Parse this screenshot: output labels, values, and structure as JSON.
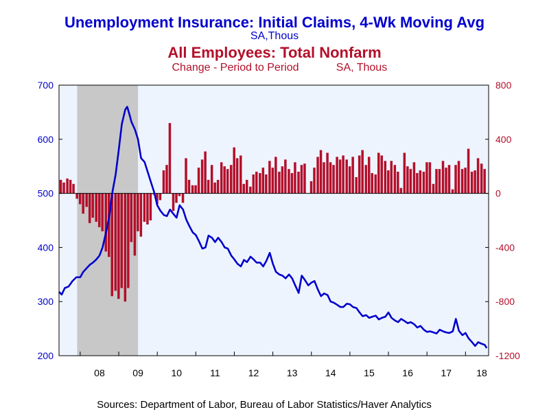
{
  "chart_data": {
    "type": "bar+line",
    "title": "Unemployment Insurance: Initial Claims, 4-Wk Moving Avg",
    "title_units": "SA,Thous",
    "subtitle": "All Employees: Total Nonfarm",
    "subtitle_units_a": "Change - Period to Period",
    "subtitle_units_b": "SA, Thous",
    "source": "Sources:  Department of Labor, Bureau of Labor Statistics/Haver Analytics",
    "colors": {
      "line": "#0000cc",
      "bars": "#b30f2a",
      "plot_bg": "#eef4fe",
      "recession": "#c8c8c8",
      "left_axis": "#0000cc",
      "right_axis": "#b30f2a"
    },
    "x_axis": {
      "ticks": [
        "08",
        "09",
        "10",
        "11",
        "12",
        "13",
        "14",
        "15",
        "16",
        "17",
        "18"
      ],
      "range": [
        2007.45,
        2018.6
      ]
    },
    "left_axis": {
      "range": [
        200,
        700
      ],
      "ticks": [
        "200",
        "300",
        "400",
        "500",
        "600",
        "700"
      ]
    },
    "right_axis": {
      "range": [
        -1200,
        800
      ],
      "ticks": [
        "-1200",
        "-800",
        "-400",
        "0",
        "400",
        "800"
      ]
    },
    "recession": [
      2007.92,
      2009.5
    ],
    "series": [
      {
        "name": "Unemployment Insurance: Initial Claims, 4-Wk Moving Avg",
        "axis": "left",
        "points": [
          [
            2007.45,
            318
          ],
          [
            2007.52,
            313
          ],
          [
            2007.6,
            325
          ],
          [
            2007.7,
            328
          ],
          [
            2007.8,
            338
          ],
          [
            2007.9,
            345
          ],
          [
            2008.0,
            345
          ],
          [
            2008.08,
            355
          ],
          [
            2008.17,
            362
          ],
          [
            2008.25,
            368
          ],
          [
            2008.33,
            372
          ],
          [
            2008.42,
            378
          ],
          [
            2008.5,
            385
          ],
          [
            2008.58,
            400
          ],
          [
            2008.67,
            428
          ],
          [
            2008.75,
            455
          ],
          [
            2008.83,
            500
          ],
          [
            2008.92,
            535
          ],
          [
            2009.0,
            580
          ],
          [
            2009.08,
            628
          ],
          [
            2009.17,
            655
          ],
          [
            2009.22,
            660
          ],
          [
            2009.27,
            648
          ],
          [
            2009.33,
            632
          ],
          [
            2009.42,
            618
          ],
          [
            2009.5,
            600
          ],
          [
            2009.58,
            565
          ],
          [
            2009.67,
            558
          ],
          [
            2009.75,
            540
          ],
          [
            2009.83,
            522
          ],
          [
            2009.92,
            502
          ],
          [
            2010.0,
            478
          ],
          [
            2010.08,
            468
          ],
          [
            2010.17,
            460
          ],
          [
            2010.25,
            458
          ],
          [
            2010.33,
            470
          ],
          [
            2010.42,
            462
          ],
          [
            2010.5,
            455
          ],
          [
            2010.58,
            478
          ],
          [
            2010.67,
            470
          ],
          [
            2010.75,
            452
          ],
          [
            2010.83,
            440
          ],
          [
            2010.92,
            428
          ],
          [
            2011.0,
            423
          ],
          [
            2011.08,
            412
          ],
          [
            2011.17,
            398
          ],
          [
            2011.25,
            400
          ],
          [
            2011.33,
            422
          ],
          [
            2011.42,
            418
          ],
          [
            2011.5,
            410
          ],
          [
            2011.58,
            418
          ],
          [
            2011.67,
            410
          ],
          [
            2011.75,
            400
          ],
          [
            2011.83,
            398
          ],
          [
            2011.92,
            385
          ],
          [
            2012.0,
            378
          ],
          [
            2012.08,
            370
          ],
          [
            2012.17,
            365
          ],
          [
            2012.25,
            377
          ],
          [
            2012.33,
            373
          ],
          [
            2012.42,
            383
          ],
          [
            2012.5,
            378
          ],
          [
            2012.58,
            372
          ],
          [
            2012.67,
            372
          ],
          [
            2012.75,
            365
          ],
          [
            2012.83,
            375
          ],
          [
            2012.92,
            390
          ],
          [
            2013.0,
            370
          ],
          [
            2013.08,
            355
          ],
          [
            2013.17,
            350
          ],
          [
            2013.25,
            348
          ],
          [
            2013.33,
            343
          ],
          [
            2013.42,
            350
          ],
          [
            2013.5,
            343
          ],
          [
            2013.58,
            330
          ],
          [
            2013.67,
            316
          ],
          [
            2013.75,
            348
          ],
          [
            2013.83,
            340
          ],
          [
            2013.92,
            330
          ],
          [
            2014.0,
            335
          ],
          [
            2014.08,
            338
          ],
          [
            2014.17,
            322
          ],
          [
            2014.25,
            310
          ],
          [
            2014.33,
            315
          ],
          [
            2014.42,
            312
          ],
          [
            2014.5,
            300
          ],
          [
            2014.58,
            298
          ],
          [
            2014.67,
            294
          ],
          [
            2014.75,
            290
          ],
          [
            2014.83,
            290
          ],
          [
            2014.92,
            296
          ],
          [
            2015.0,
            295
          ],
          [
            2015.08,
            290
          ],
          [
            2015.17,
            288
          ],
          [
            2015.25,
            280
          ],
          [
            2015.33,
            273
          ],
          [
            2015.42,
            275
          ],
          [
            2015.5,
            270
          ],
          [
            2015.58,
            272
          ],
          [
            2015.67,
            274
          ],
          [
            2015.75,
            267
          ],
          [
            2015.83,
            270
          ],
          [
            2015.92,
            272
          ],
          [
            2016.0,
            280
          ],
          [
            2016.08,
            270
          ],
          [
            2016.17,
            265
          ],
          [
            2016.25,
            262
          ],
          [
            2016.33,
            268
          ],
          [
            2016.42,
            264
          ],
          [
            2016.5,
            260
          ],
          [
            2016.58,
            262
          ],
          [
            2016.67,
            258
          ],
          [
            2016.75,
            252
          ],
          [
            2016.83,
            255
          ],
          [
            2016.92,
            248
          ],
          [
            2017.0,
            244
          ],
          [
            2017.08,
            245
          ],
          [
            2017.17,
            243
          ],
          [
            2017.25,
            241
          ],
          [
            2017.33,
            248
          ],
          [
            2017.42,
            245
          ],
          [
            2017.5,
            243
          ],
          [
            2017.58,
            242
          ],
          [
            2017.67,
            245
          ],
          [
            2017.75,
            268
          ],
          [
            2017.83,
            246
          ],
          [
            2017.92,
            238
          ],
          [
            2018.0,
            242
          ],
          [
            2018.08,
            232
          ],
          [
            2018.17,
            225
          ],
          [
            2018.25,
            218
          ],
          [
            2018.33,
            225
          ],
          [
            2018.42,
            222
          ],
          [
            2018.5,
            220
          ],
          [
            2018.55,
            214
          ]
        ]
      },
      {
        "name": "All Employees: Total Nonfarm",
        "axis": "right",
        "bar_width": 0.071,
        "points": [
          [
            2007.5,
            100
          ],
          [
            2007.58,
            80
          ],
          [
            2007.67,
            110
          ],
          [
            2007.75,
            100
          ],
          [
            2007.83,
            70
          ],
          [
            2007.92,
            -40
          ],
          [
            2008.0,
            -80
          ],
          [
            2008.08,
            -150
          ],
          [
            2008.17,
            -100
          ],
          [
            2008.25,
            -220
          ],
          [
            2008.33,
            -180
          ],
          [
            2008.42,
            -210
          ],
          [
            2008.5,
            -250
          ],
          [
            2008.58,
            -280
          ],
          [
            2008.67,
            -430
          ],
          [
            2008.75,
            -470
          ],
          [
            2008.83,
            -760
          ],
          [
            2008.92,
            -720
          ],
          [
            2009.0,
            -780
          ],
          [
            2009.08,
            -700
          ],
          [
            2009.17,
            -800
          ],
          [
            2009.25,
            -700
          ],
          [
            2009.33,
            -360
          ],
          [
            2009.42,
            -460
          ],
          [
            2009.5,
            -280
          ],
          [
            2009.58,
            -320
          ],
          [
            2009.67,
            -210
          ],
          [
            2009.75,
            -230
          ],
          [
            2009.83,
            -200
          ],
          [
            2009.92,
            -10
          ],
          [
            2010.0,
            -80
          ],
          [
            2010.08,
            -50
          ],
          [
            2010.17,
            170
          ],
          [
            2010.25,
            210
          ],
          [
            2010.33,
            520
          ],
          [
            2010.42,
            -130
          ],
          [
            2010.5,
            -70
          ],
          [
            2010.58,
            -20
          ],
          [
            2010.67,
            -70
          ],
          [
            2010.75,
            260
          ],
          [
            2010.83,
            100
          ],
          [
            2010.92,
            60
          ],
          [
            2011.0,
            60
          ],
          [
            2011.08,
            190
          ],
          [
            2011.17,
            250
          ],
          [
            2011.25,
            310
          ],
          [
            2011.33,
            100
          ],
          [
            2011.42,
            210
          ],
          [
            2011.5,
            80
          ],
          [
            2011.58,
            100
          ],
          [
            2011.67,
            230
          ],
          [
            2011.75,
            200
          ],
          [
            2011.83,
            180
          ],
          [
            2011.92,
            210
          ],
          [
            2012.0,
            340
          ],
          [
            2012.08,
            260
          ],
          [
            2012.17,
            280
          ],
          [
            2012.25,
            70
          ],
          [
            2012.33,
            100
          ],
          [
            2012.42,
            50
          ],
          [
            2012.5,
            140
          ],
          [
            2012.58,
            160
          ],
          [
            2012.67,
            150
          ],
          [
            2012.75,
            190
          ],
          [
            2012.83,
            140
          ],
          [
            2012.92,
            240
          ],
          [
            2013.0,
            190
          ],
          [
            2013.08,
            270
          ],
          [
            2013.17,
            160
          ],
          [
            2013.25,
            200
          ],
          [
            2013.33,
            250
          ],
          [
            2013.42,
            180
          ],
          [
            2013.5,
            150
          ],
          [
            2013.58,
            230
          ],
          [
            2013.67,
            160
          ],
          [
            2013.75,
            210
          ],
          [
            2013.83,
            220
          ],
          [
            2014.0,
            90
          ],
          [
            2014.08,
            190
          ],
          [
            2014.17,
            270
          ],
          [
            2014.25,
            320
          ],
          [
            2014.33,
            230
          ],
          [
            2014.42,
            300
          ],
          [
            2014.5,
            230
          ],
          [
            2014.58,
            210
          ],
          [
            2014.67,
            270
          ],
          [
            2014.75,
            250
          ],
          [
            2014.83,
            280
          ],
          [
            2014.92,
            250
          ],
          [
            2015.0,
            200
          ],
          [
            2015.08,
            270
          ],
          [
            2015.17,
            120
          ],
          [
            2015.25,
            280
          ],
          [
            2015.33,
            320
          ],
          [
            2015.42,
            210
          ],
          [
            2015.5,
            270
          ],
          [
            2015.58,
            150
          ],
          [
            2015.67,
            140
          ],
          [
            2015.75,
            300
          ],
          [
            2015.83,
            280
          ],
          [
            2015.92,
            240
          ],
          [
            2016.0,
            170
          ],
          [
            2016.08,
            240
          ],
          [
            2016.17,
            210
          ],
          [
            2016.25,
            160
          ],
          [
            2016.33,
            40
          ],
          [
            2016.42,
            300
          ],
          [
            2016.5,
            200
          ],
          [
            2016.58,
            180
          ],
          [
            2016.67,
            230
          ],
          [
            2016.75,
            150
          ],
          [
            2016.83,
            170
          ],
          [
            2016.92,
            160
          ],
          [
            2017.0,
            230
          ],
          [
            2017.08,
            230
          ],
          [
            2017.17,
            70
          ],
          [
            2017.25,
            180
          ],
          [
            2017.33,
            180
          ],
          [
            2017.42,
            240
          ],
          [
            2017.5,
            190
          ],
          [
            2017.58,
            210
          ],
          [
            2017.67,
            30
          ],
          [
            2017.75,
            210
          ],
          [
            2017.83,
            240
          ],
          [
            2017.92,
            180
          ],
          [
            2018.0,
            190
          ],
          [
            2018.08,
            330
          ],
          [
            2018.17,
            160
          ],
          [
            2018.25,
            170
          ],
          [
            2018.33,
            260
          ],
          [
            2018.42,
            220
          ],
          [
            2018.5,
            180
          ]
        ]
      }
    ]
  }
}
